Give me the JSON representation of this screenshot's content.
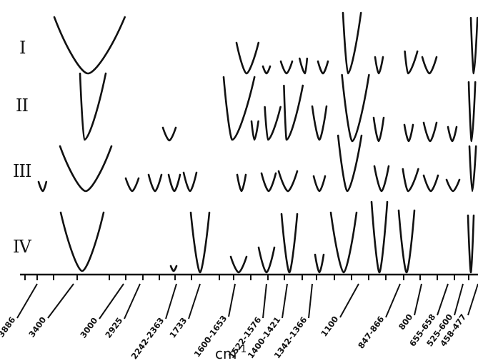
{
  "chart_data": {
    "type": "line",
    "xlabel": "cm",
    "xlabel_superscript": "-1",
    "spectra": [
      "I",
      "II",
      "III",
      "IV"
    ],
    "wavenumber_labels": [
      "3886",
      "3400",
      "3000",
      "2925",
      "2242-2363",
      "1733",
      "1600-1653",
      "1522-1576",
      "1400-1421",
      "1342-1366",
      "1100",
      "847-866",
      "800",
      "655-658",
      "525-600",
      "458-477"
    ],
    "grid": false
  }
}
